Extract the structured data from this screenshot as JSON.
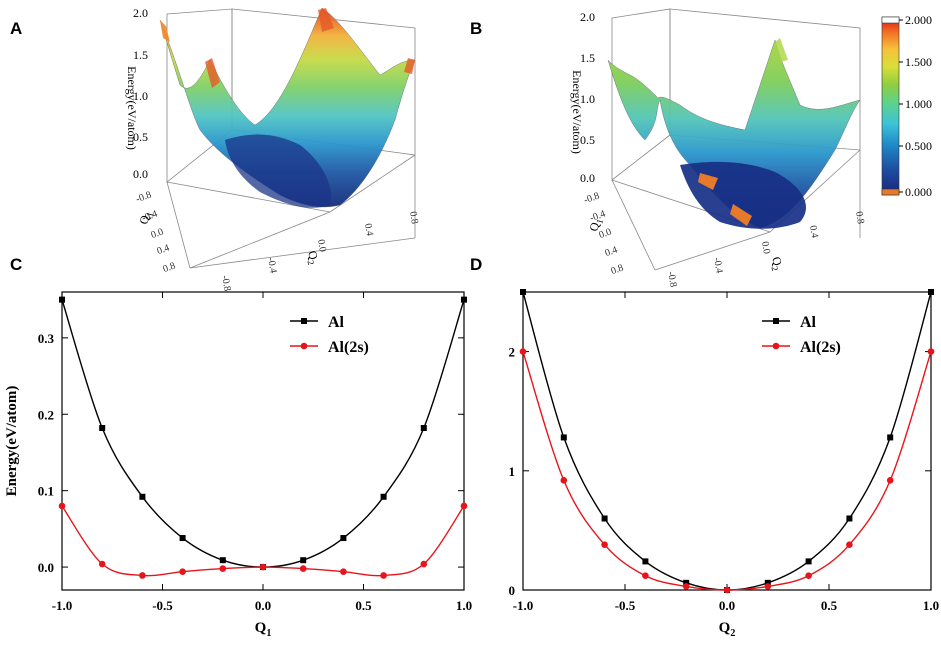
{
  "panel_labels": [
    "A",
    "B",
    "C",
    "D"
  ],
  "colors": {
    "al": "#000000",
    "al2s": "#e8141c"
  },
  "chart_data": [
    {
      "panel": "A",
      "type": "surface",
      "zlabel": "Energy(eV/atom)",
      "z_ticks": [
        "2.0",
        "1.5",
        "1.0",
        "0.5",
        "0.0"
      ],
      "q1_label": "Q",
      "q1_sub": "1",
      "q1_ticks": [
        "-0.8",
        "-0.4",
        "0.0",
        "0.4",
        "0.8"
      ],
      "q2_label": "Q",
      "q2_sub": "2",
      "q2_ticks": [
        "-0.8",
        "-0.4",
        "0.0",
        "0.4",
        "0.8"
      ]
    },
    {
      "panel": "B",
      "type": "surface",
      "zlabel": "Energy(eV/atom)",
      "z_ticks": [
        "2.0",
        "1.5",
        "1.0",
        "0.5",
        "0.0"
      ],
      "q1_label": "Q",
      "q1_sub": "1",
      "q1_ticks": [
        "-0.8",
        "-0.4",
        "0.0",
        "0.4",
        "0.8"
      ],
      "q2_label": "Q",
      "q2_sub": "2",
      "q2_ticks": [
        "-0.8",
        "-0.4",
        "0.0",
        "0.4",
        "0.8"
      ],
      "colorbar": {
        "ticks": [
          "2.000",
          "1.500",
          "1.000",
          "0.500",
          "0.000"
        ],
        "range": [
          0,
          2
        ]
      }
    },
    {
      "panel": "C",
      "type": "line",
      "xlabel": "Q",
      "xsub": "1",
      "ylabel": "Energy(eV/atom)",
      "xlim": [
        -1.0,
        1.0
      ],
      "ylim": [
        -0.03,
        0.36
      ],
      "xticks": [
        -1.0,
        -0.5,
        0.0,
        0.5,
        1.0
      ],
      "xtick_labels": [
        "-1.0",
        "-0.5",
        "0.0",
        "0.5",
        "1.0"
      ],
      "yticks": [
        0.0,
        0.1,
        0.2,
        0.3
      ],
      "ytick_labels": [
        "0.0",
        "0.1",
        "0.2",
        "0.3"
      ],
      "x": [
        -1.0,
        -0.8,
        -0.6,
        -0.4,
        -0.2,
        0.0,
        0.2,
        0.4,
        0.6,
        0.8,
        1.0
      ],
      "series": [
        {
          "name": "Al",
          "marker": "square",
          "values": [
            0.35,
            0.182,
            0.092,
            0.038,
            0.009,
            0.0,
            0.009,
            0.038,
            0.092,
            0.182,
            0.35
          ]
        },
        {
          "name": "Al(2s)",
          "marker": "circle",
          "values": [
            0.08,
            0.004,
            -0.011,
            -0.006,
            -0.002,
            0.0,
            -0.002,
            -0.006,
            -0.011,
            0.004,
            0.08
          ]
        }
      ],
      "legend": "top-right"
    },
    {
      "panel": "D",
      "type": "line",
      "xlabel": "Q",
      "xsub": "2",
      "ylabel": "",
      "xlim": [
        -1.0,
        1.0
      ],
      "ylim": [
        0,
        2.5
      ],
      "xticks": [
        -1.0,
        -0.5,
        0.0,
        0.5,
        1.0
      ],
      "xtick_labels": [
        "-1.0",
        "-0.5",
        "0.0",
        "0.5",
        "1.0"
      ],
      "yticks": [
        0,
        1,
        2
      ],
      "ytick_labels": [
        "0",
        "1",
        "2"
      ],
      "x": [
        -1.0,
        -0.8,
        -0.6,
        -0.4,
        -0.2,
        0.0,
        0.2,
        0.4,
        0.6,
        0.8,
        1.0
      ],
      "series": [
        {
          "name": "Al",
          "marker": "square",
          "values": [
            2.5,
            1.28,
            0.6,
            0.24,
            0.06,
            0.0,
            0.06,
            0.24,
            0.6,
            1.28,
            2.5
          ]
        },
        {
          "name": "Al(2s)",
          "marker": "circle",
          "values": [
            2.0,
            0.92,
            0.38,
            0.12,
            0.03,
            0.0,
            0.03,
            0.12,
            0.38,
            0.92,
            2.0
          ]
        }
      ],
      "legend": "top-right"
    }
  ]
}
